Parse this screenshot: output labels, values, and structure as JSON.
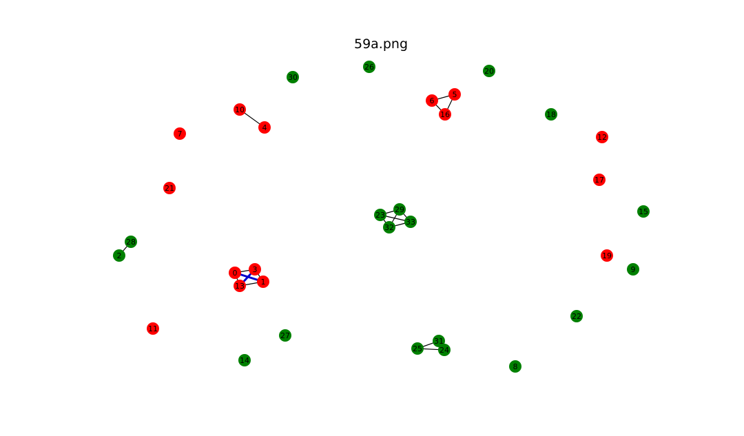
{
  "figure": {
    "title": "59a.png"
  },
  "colors": {
    "red_node": "#ff0000",
    "green_node": "#008000",
    "edge": "#000000",
    "highlight_edge": "#0000cc"
  },
  "graph": {
    "nodes": [
      {
        "id": "0",
        "color": "red"
      },
      {
        "id": "3",
        "color": "red"
      },
      {
        "id": "1",
        "color": "red"
      },
      {
        "id": "13",
        "color": "red"
      },
      {
        "id": "10",
        "color": "red"
      },
      {
        "id": "4",
        "color": "red"
      },
      {
        "id": "7",
        "color": "red"
      },
      {
        "id": "21",
        "color": "red"
      },
      {
        "id": "11",
        "color": "red"
      },
      {
        "id": "6",
        "color": "red"
      },
      {
        "id": "5",
        "color": "red"
      },
      {
        "id": "16",
        "color": "red"
      },
      {
        "id": "12",
        "color": "red"
      },
      {
        "id": "17",
        "color": "red"
      },
      {
        "id": "19",
        "color": "red"
      },
      {
        "id": "30",
        "color": "green"
      },
      {
        "id": "26",
        "color": "green"
      },
      {
        "id": "20",
        "color": "green"
      },
      {
        "id": "18",
        "color": "green"
      },
      {
        "id": "15",
        "color": "green"
      },
      {
        "id": "9",
        "color": "green"
      },
      {
        "id": "22",
        "color": "green"
      },
      {
        "id": "8",
        "color": "green"
      },
      {
        "id": "14",
        "color": "green"
      },
      {
        "id": "27",
        "color": "green"
      },
      {
        "id": "28",
        "color": "green"
      },
      {
        "id": "2",
        "color": "green"
      },
      {
        "id": "23",
        "color": "green"
      },
      {
        "id": "29",
        "color": "green"
      },
      {
        "id": "33",
        "color": "green"
      },
      {
        "id": "32",
        "color": "green"
      },
      {
        "id": "25",
        "color": "green"
      },
      {
        "id": "31",
        "color": "green"
      },
      {
        "id": "24",
        "color": "green"
      }
    ],
    "edges": [
      {
        "source": "10",
        "target": "4",
        "highlight": false
      },
      {
        "source": "6",
        "target": "5",
        "highlight": false
      },
      {
        "source": "6",
        "target": "16",
        "highlight": false
      },
      {
        "source": "5",
        "target": "16",
        "highlight": false
      },
      {
        "source": "28",
        "target": "2",
        "highlight": false
      },
      {
        "source": "0",
        "target": "3",
        "highlight": false
      },
      {
        "source": "0",
        "target": "1",
        "highlight": true
      },
      {
        "source": "3",
        "target": "13",
        "highlight": true
      },
      {
        "source": "3",
        "target": "1",
        "highlight": false
      },
      {
        "source": "13",
        "target": "1",
        "highlight": false
      },
      {
        "source": "0",
        "target": "13",
        "highlight": false
      },
      {
        "source": "23",
        "target": "29",
        "highlight": false
      },
      {
        "source": "23",
        "target": "33",
        "highlight": false
      },
      {
        "source": "23",
        "target": "32",
        "highlight": false
      },
      {
        "source": "29",
        "target": "33",
        "highlight": false
      },
      {
        "source": "29",
        "target": "32",
        "highlight": false
      },
      {
        "source": "32",
        "target": "33",
        "highlight": false
      },
      {
        "source": "25",
        "target": "31",
        "highlight": false
      },
      {
        "source": "25",
        "target": "24",
        "highlight": false
      },
      {
        "source": "31",
        "target": "24",
        "highlight": false
      }
    ]
  }
}
